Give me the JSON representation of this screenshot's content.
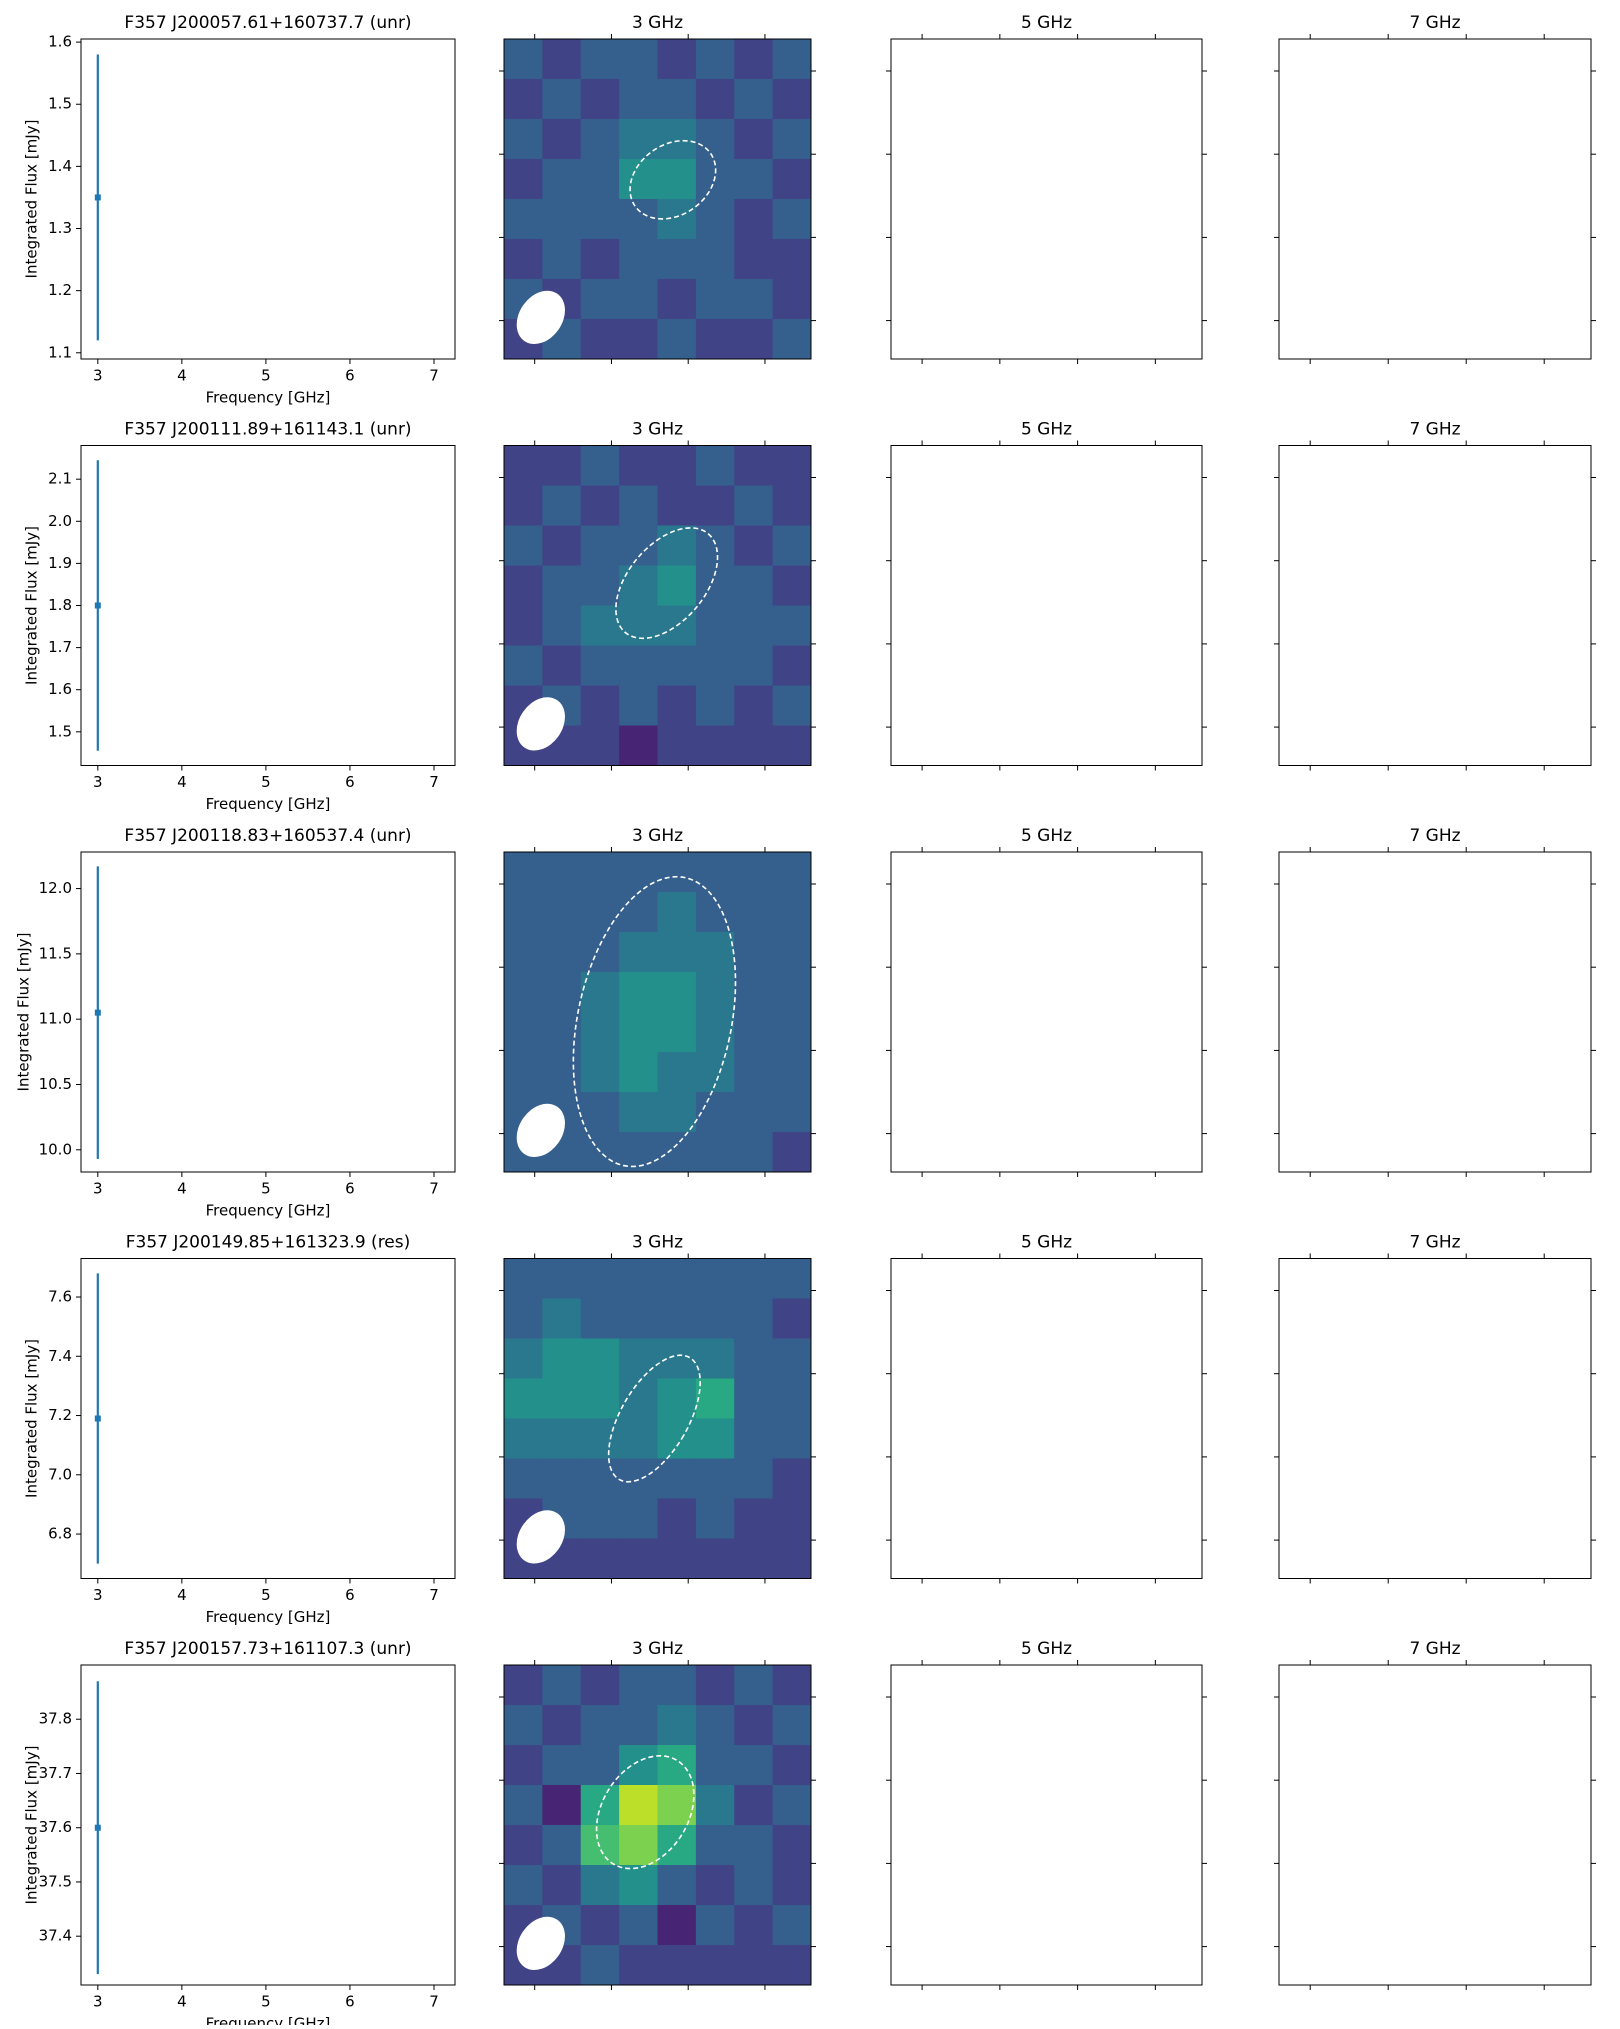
{
  "chart_data": [
    {
      "type": "errorbar",
      "title": "F357 J200057.61+160737.7 (unr)",
      "xlabel": "Frequency [GHz]",
      "ylabel": "Integrated Flux [mJy]",
      "color": "#1f77b4",
      "x": [
        3
      ],
      "values": [
        1.35
      ],
      "errors": [
        0.23
      ],
      "xlim": [
        2.8,
        7.25
      ],
      "ylim": [
        1.09,
        1.605
      ],
      "xticks": [
        3,
        4,
        5,
        6,
        7
      ],
      "yticks": [
        1.1,
        1.2,
        1.3,
        1.4,
        1.5,
        1.6
      ]
    },
    {
      "type": "heatmap",
      "title": "3 GHz",
      "colormap": "viridis",
      "z": [
        [
          3,
          2,
          3,
          3,
          2,
          3,
          2,
          3
        ],
        [
          2,
          3,
          2,
          3,
          3,
          2,
          3,
          2
        ],
        [
          3,
          2,
          3,
          4,
          4,
          3,
          2,
          3
        ],
        [
          2,
          3,
          3,
          5,
          5,
          3,
          3,
          2
        ],
        [
          3,
          3,
          3,
          3,
          4,
          3,
          2,
          3
        ],
        [
          2,
          3,
          2,
          3,
          3,
          3,
          2,
          2
        ],
        [
          3,
          2,
          3,
          3,
          2,
          3,
          3,
          2
        ],
        [
          2,
          3,
          2,
          2,
          3,
          2,
          2,
          3
        ]
      ]
    },
    {
      "type": "blank",
      "title": "5 GHz"
    },
    {
      "type": "blank",
      "title": "7 GHz"
    },
    {
      "type": "errorbar",
      "title": "F357 J200111.89+161143.1 (unr)",
      "xlabel": "Frequency [GHz]",
      "ylabel": "Integrated Flux [mJy]",
      "color": "#1f77b4",
      "x": [
        3
      ],
      "values": [
        1.8
      ],
      "errors": [
        0.345
      ],
      "xlim": [
        2.8,
        7.25
      ],
      "ylim": [
        1.42,
        2.18
      ],
      "xticks": [
        3,
        4,
        5,
        6,
        7
      ],
      "yticks": [
        1.5,
        1.6,
        1.7,
        1.8,
        1.9,
        {
          "value": 2,
          "label": "2.0"
        },
        2.1
      ]
    },
    {
      "type": "heatmap",
      "title": "3 GHz",
      "colormap": "viridis",
      "z": [
        [
          2,
          2,
          3,
          2,
          2,
          3,
          2,
          2
        ],
        [
          2,
          3,
          2,
          3,
          2,
          2,
          3,
          2
        ],
        [
          3,
          2,
          3,
          3,
          4,
          3,
          2,
          3
        ],
        [
          2,
          3,
          3,
          4,
          5,
          3,
          3,
          2
        ],
        [
          2,
          3,
          4,
          4,
          4,
          3,
          3,
          3
        ],
        [
          3,
          2,
          3,
          3,
          3,
          3,
          3,
          2
        ],
        [
          2,
          3,
          2,
          3,
          2,
          3,
          2,
          3
        ],
        [
          2,
          2,
          2,
          1,
          2,
          2,
          2,
          2
        ]
      ]
    },
    {
      "type": "blank",
      "title": "5 GHz"
    },
    {
      "type": "blank",
      "title": "7 GHz"
    },
    {
      "type": "errorbar",
      "title": "F357 J200118.83+160537.4 (unr)",
      "xlabel": "Frequency [GHz]",
      "ylabel": "Integrated Flux [mJy]",
      "color": "#1f77b4",
      "x": [
        3
      ],
      "values": [
        11.05
      ],
      "errors": [
        1.12
      ],
      "xlim": [
        2.8,
        7.25
      ],
      "ylim": [
        9.83,
        12.28
      ],
      "xticks": [
        3,
        4,
        5,
        6,
        7
      ],
      "yticks": [
        {
          "value": 10,
          "label": "10.0"
        },
        10.5,
        {
          "value": 11,
          "label": "11.0"
        },
        11.5,
        {
          "value": 12,
          "label": "12.0"
        }
      ]
    },
    {
      "type": "heatmap",
      "title": "3 GHz",
      "colormap": "viridis",
      "z": [
        [
          3,
          3,
          3,
          3,
          3,
          3,
          3,
          3
        ],
        [
          3,
          3,
          3,
          3,
          4,
          3,
          3,
          3
        ],
        [
          3,
          3,
          3,
          4,
          4,
          4,
          3,
          3
        ],
        [
          3,
          3,
          4,
          5,
          5,
          4,
          3,
          3
        ],
        [
          3,
          3,
          4,
          5,
          5,
          4,
          3,
          3
        ],
        [
          3,
          3,
          4,
          5,
          4,
          4,
          3,
          3
        ],
        [
          3,
          3,
          3,
          4,
          4,
          3,
          3,
          3
        ],
        [
          3,
          3,
          3,
          3,
          3,
          3,
          3,
          2
        ]
      ]
    },
    {
      "type": "blank",
      "title": "5 GHz"
    },
    {
      "type": "blank",
      "title": "7 GHz"
    },
    {
      "type": "errorbar",
      "title": "F357 J200149.85+161323.9 (res)",
      "xlabel": "Frequency [GHz]",
      "ylabel": "Integrated Flux [mJy]",
      "color": "#1f77b4",
      "x": [
        3
      ],
      "values": [
        7.19
      ],
      "errors": [
        0.49
      ],
      "xlim": [
        2.8,
        7.25
      ],
      "ylim": [
        6.65,
        7.73
      ],
      "xticks": [
        3,
        4,
        5,
        6,
        7
      ],
      "yticks": [
        6.8,
        {
          "value": 7,
          "label": "7.0"
        },
        7.2,
        7.4,
        7.6
      ]
    },
    {
      "type": "heatmap",
      "title": "3 GHz",
      "colormap": "viridis",
      "z": [
        [
          3,
          3,
          3,
          3,
          3,
          3,
          3,
          3
        ],
        [
          3,
          4,
          3,
          3,
          3,
          3,
          3,
          2
        ],
        [
          4,
          5,
          5,
          4,
          4,
          4,
          3,
          3
        ],
        [
          5,
          5,
          5,
          4,
          5,
          6,
          3,
          3
        ],
        [
          4,
          4,
          4,
          4,
          5,
          5,
          3,
          3
        ],
        [
          3,
          3,
          3,
          3,
          3,
          3,
          3,
          2
        ],
        [
          2,
          3,
          3,
          3,
          2,
          3,
          2,
          2
        ],
        [
          2,
          2,
          2,
          2,
          2,
          2,
          2,
          2
        ]
      ]
    },
    {
      "type": "blank",
      "title": "5 GHz"
    },
    {
      "type": "blank",
      "title": "7 GHz"
    },
    {
      "type": "errorbar",
      "title": "F357 J200157.73+161107.3 (unr)",
      "xlabel": "Frequency [GHz]",
      "ylabel": "Integrated Flux [mJy]",
      "color": "#1f77b4",
      "x": [
        3
      ],
      "values": [
        37.6
      ],
      "errors": [
        0.27
      ],
      "xlim": [
        2.8,
        7.25
      ],
      "ylim": [
        37.31,
        37.9
      ],
      "xticks": [
        3,
        4,
        5,
        6,
        7
      ],
      "yticks": [
        37.4,
        37.5,
        37.6,
        37.7,
        37.8
      ]
    },
    {
      "type": "heatmap",
      "title": "3 GHz",
      "colormap": "viridis",
      "z": [
        [
          2,
          3,
          2,
          3,
          3,
          2,
          3,
          2
        ],
        [
          3,
          2,
          3,
          3,
          4,
          3,
          2,
          3
        ],
        [
          2,
          3,
          3,
          5,
          6,
          3,
          3,
          2
        ],
        [
          3,
          1,
          6,
          9,
          8,
          4,
          2,
          3
        ],
        [
          2,
          3,
          7,
          8,
          6,
          3,
          3,
          2
        ],
        [
          3,
          2,
          4,
          5,
          3,
          2,
          3,
          2
        ],
        [
          2,
          3,
          2,
          3,
          1,
          3,
          2,
          3
        ],
        [
          2,
          2,
          3,
          2,
          2,
          2,
          2,
          2
        ]
      ]
    },
    {
      "type": "blank",
      "title": "5 GHz"
    },
    {
      "type": "blank",
      "title": "7 GHz"
    }
  ]
}
